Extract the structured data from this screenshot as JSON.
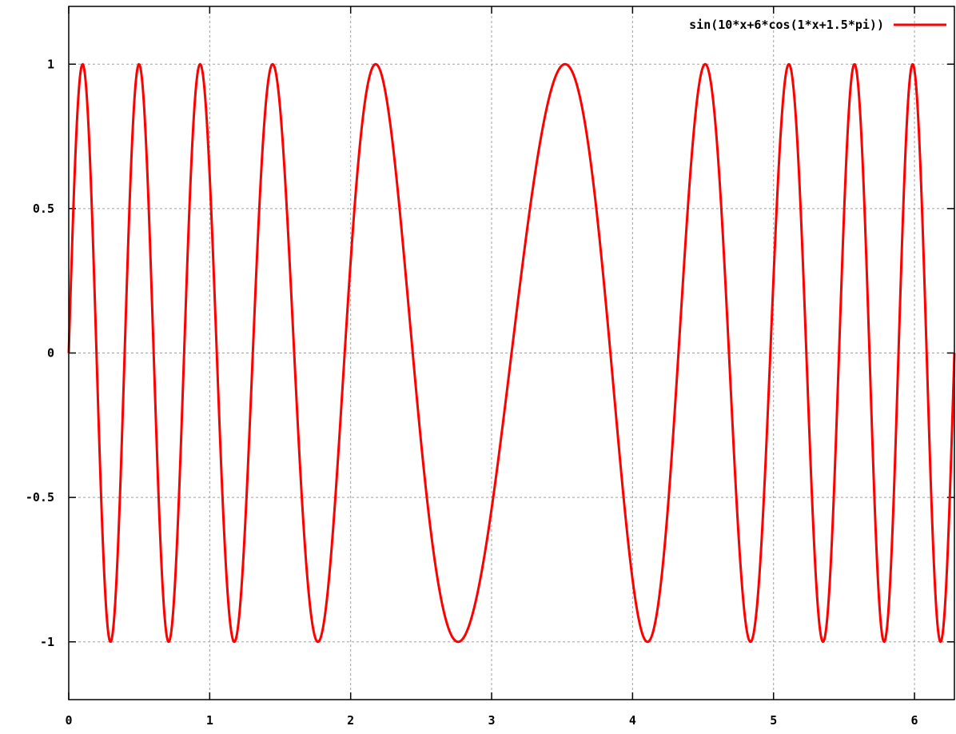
{
  "chart_data": {
    "type": "line",
    "title": "",
    "xlabel": "",
    "ylabel": "",
    "xlim": [
      0,
      6.2832
    ],
    "ylim": [
      -1.2,
      1.2
    ],
    "x_ticks": [
      0,
      1,
      2,
      3,
      4,
      5,
      6
    ],
    "x_tick_labels": [
      "0",
      "1",
      "2",
      "3",
      "4",
      "5",
      "6"
    ],
    "y_ticks": [
      1,
      0.5,
      0,
      -0.5,
      -1
    ],
    "y_tick_labels": [
      "1",
      "0.5",
      "0",
      "-0.5",
      "-1"
    ],
    "grid": true,
    "legend_position": "top-right",
    "series": [
      {
        "name": "sin(10*x+6*cos(1*x+1.5*pi))",
        "color": "#ff0000",
        "function": "sin(10*x+6*cos(1*x+1.5*pi))",
        "samples": 1200
      }
    ]
  }
}
